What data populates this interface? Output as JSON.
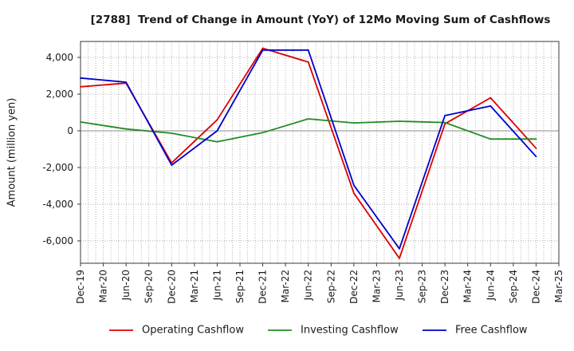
{
  "chart_data": {
    "type": "line",
    "title": "[2788]  Trend of Change in Amount (YoY) of 12Mo Moving Sum of Cashflows",
    "xlabel": "",
    "ylabel": "Amount (million yen)",
    "x_ticks": [
      "Dec-19",
      "Mar-20",
      "Jun-20",
      "Sep-20",
      "Dec-20",
      "Mar-21",
      "Jun-21",
      "Sep-21",
      "Dec-21",
      "Mar-22",
      "Jun-22",
      "Sep-22",
      "Dec-22",
      "Mar-23",
      "Jun-23",
      "Sep-23",
      "Dec-23",
      "Mar-24",
      "Jun-24",
      "Sep-24",
      "Dec-24",
      "Mar-25"
    ],
    "y_ticks": [
      4000,
      2000,
      0,
      -2000,
      -4000,
      -6000
    ],
    "y_tick_labels": [
      "4,000",
      "2,000",
      "0",
      "-2,000",
      "-4,000",
      "-6,000"
    ],
    "ylim": [
      -7220,
      4870
    ],
    "x": [
      "Dec-19",
      "Jun-20",
      "Dec-20",
      "Jun-21",
      "Dec-21",
      "Jun-22",
      "Dec-22",
      "Jun-23",
      "Dec-23",
      "Jun-24",
      "Dec-24"
    ],
    "series": [
      {
        "name": "Operating Cashflow",
        "color": "#dd0000",
        "values": [
          2400,
          2600,
          -1750,
          600,
          4500,
          3750,
          -3400,
          -6950,
          380,
          1800,
          -950
        ]
      },
      {
        "name": "Investing Cashflow",
        "color": "#228b22",
        "values": [
          480,
          100,
          -130,
          -600,
          -100,
          650,
          430,
          520,
          450,
          -450,
          -450
        ]
      },
      {
        "name": "Free Cashflow",
        "color": "#0000cc",
        "values": [
          2880,
          2650,
          -1870,
          0,
          4400,
          4400,
          -2970,
          -6430,
          830,
          1350,
          -1400
        ]
      }
    ],
    "grid": true,
    "legend": "bottom"
  }
}
